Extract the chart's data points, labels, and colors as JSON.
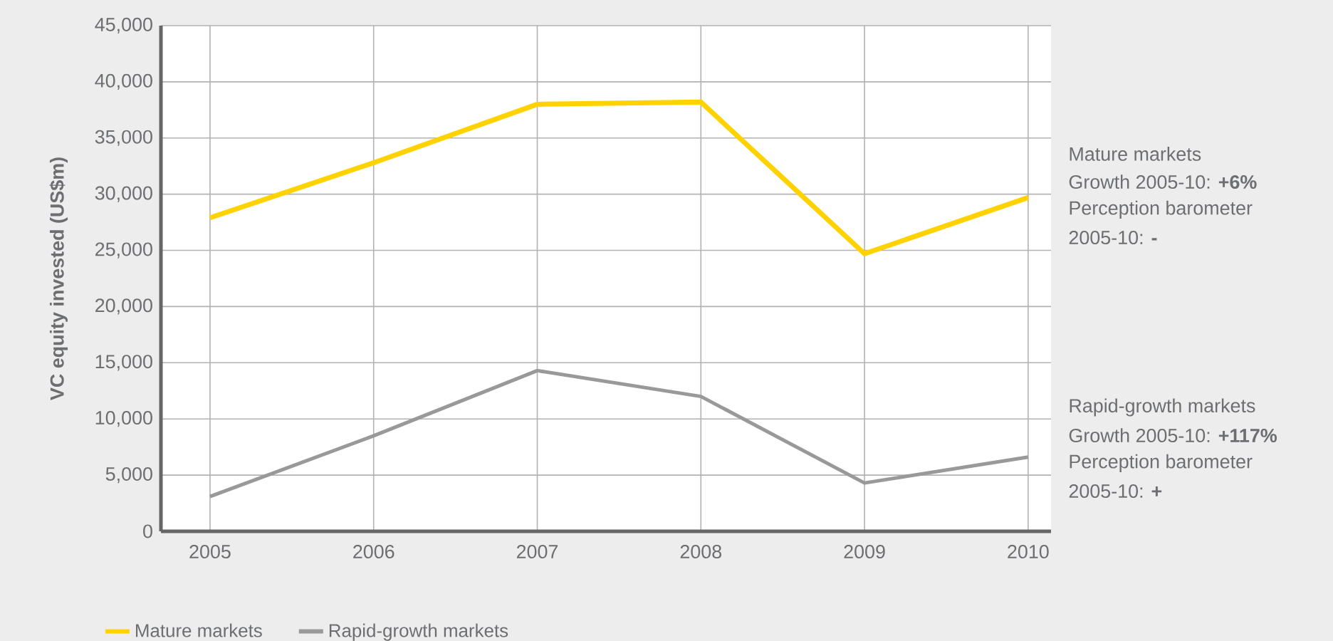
{
  "chart_data": {
    "type": "line",
    "ylabel": "VC equity invested (US$m)",
    "x": [
      2005,
      2006,
      2007,
      2008,
      2009,
      2010
    ],
    "xlim": [
      2004.7,
      2010.14
    ],
    "xticks": [
      2005,
      2006,
      2007,
      2008,
      2009,
      2010
    ],
    "ylim": [
      0,
      45000
    ],
    "yticks": [
      {
        "value": 0,
        "label": "0"
      },
      {
        "value": 5000,
        "label": "5,000"
      },
      {
        "value": 10000,
        "label": "10,000"
      },
      {
        "value": 15000,
        "label": "15,000"
      },
      {
        "value": 20000,
        "label": "20,000"
      },
      {
        "value": 25000,
        "label": "25,000"
      },
      {
        "value": 30000,
        "label": "30,000"
      },
      {
        "value": 35000,
        "label": "35,000"
      },
      {
        "value": 40000,
        "label": "40,000"
      },
      {
        "value": 45000,
        "label": "45,000"
      }
    ],
    "series": [
      {
        "name": "Mature markets",
        "color": "#ffd200",
        "values": [
          27900,
          32800,
          38000,
          38200,
          24700,
          29700
        ]
      },
      {
        "name": "Rapid-growth markets",
        "color": "#999999",
        "values": [
          3100,
          8500,
          14300,
          12000,
          4300,
          6600
        ]
      }
    ],
    "grid": true,
    "legend": "bottom",
    "marker": "none",
    "line_style": "solid",
    "annotations": [
      "Mature markets",
      "Growth 2005-10: **+6%**",
      "Perception barometer",
      "2005-10: **-**",
      "Rapid-growth markets",
      "Growth 2005-10: **+117%**",
      "Perception barometer",
      "2005-10: **+**"
    ]
  }
}
